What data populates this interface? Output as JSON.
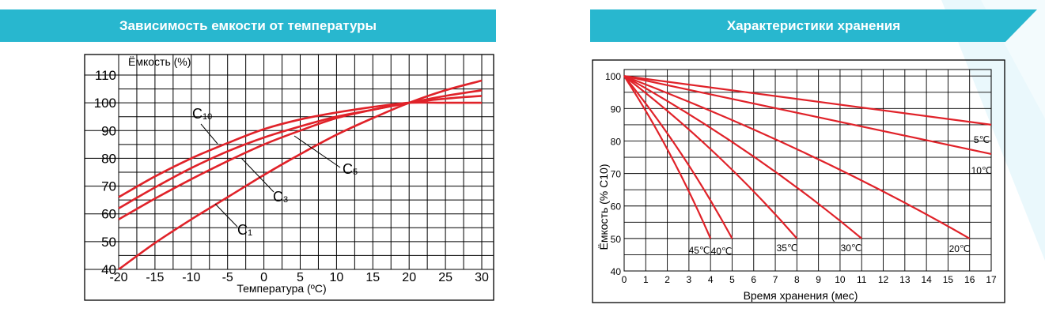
{
  "colors": {
    "header_bg": "#28b7cf",
    "curve": "#e02229",
    "grid": "#000000",
    "decoration": "#e8f7fb"
  },
  "charts": {
    "capacity_vs_temperature": {
      "header": "Зависимость емкости от температуры"
    },
    "storage": {
      "header": "Характеристики хранения"
    }
  },
  "chart_data": [
    {
      "type": "line",
      "title": "Зависимость емкости от температуры",
      "ylabel": "Ёмкость (%)",
      "xlabel": "Температура (ºC)",
      "x_ticks": [
        -20,
        -15,
        -10,
        -5,
        0,
        5,
        10,
        15,
        20,
        25,
        30
      ],
      "y_ticks": [
        40,
        50,
        60,
        70,
        80,
        90,
        100,
        110
      ],
      "xlim": [
        -20,
        30
      ],
      "ylim": [
        40,
        110
      ],
      "grid": true,
      "x": [
        -20,
        -15,
        -10,
        -5,
        0,
        5,
        10,
        15,
        20,
        25,
        30
      ],
      "series": [
        {
          "name": "C10",
          "label_main": "C",
          "label_sub": "10",
          "values": [
            66,
            73.5,
            80,
            85.5,
            90.5,
            94,
            96.5,
            98.5,
            100,
            100,
            100
          ]
        },
        {
          "name": "C5",
          "label_main": "C",
          "label_sub": "5",
          "values": [
            62,
            69.5,
            76.5,
            82.5,
            87.5,
            91.5,
            95,
            97.5,
            100,
            101.5,
            102.5
          ]
        },
        {
          "name": "C3",
          "label_main": "C",
          "label_sub": "3",
          "values": [
            58,
            65.5,
            72.5,
            79,
            85,
            90,
            94.5,
            97.5,
            100,
            102.5,
            104.5
          ]
        },
        {
          "name": "C1",
          "label_main": "C",
          "label_sub": "1",
          "values": [
            40,
            49.5,
            58,
            66,
            74,
            81.5,
            88.5,
            94.5,
            100,
            104.5,
            108
          ]
        }
      ]
    },
    {
      "type": "line",
      "title": "Характеристики хранения",
      "ylabel": "Ёмкость (% C10)",
      "xlabel": "Время хранения (мес)",
      "x_ticks": [
        0,
        1,
        2,
        3,
        4,
        5,
        6,
        7,
        8,
        9,
        10,
        11,
        12,
        13,
        14,
        15,
        16,
        17
      ],
      "y_ticks": [
        40,
        50,
        60,
        70,
        80,
        90,
        100
      ],
      "xlim": [
        0,
        17
      ],
      "ylim": [
        40,
        102
      ],
      "grid": true,
      "series": [
        {
          "name": "5℃",
          "x": [
            0,
            17
          ],
          "values": [
            100,
            85
          ]
        },
        {
          "name": "10℃",
          "x": [
            0,
            17
          ],
          "values": [
            100,
            76
          ]
        },
        {
          "name": "20℃",
          "x": [
            0,
            16
          ],
          "values": [
            100,
            50
          ]
        },
        {
          "name": "30℃",
          "x": [
            0,
            11
          ],
          "values": [
            100,
            50
          ]
        },
        {
          "name": "35℃",
          "x": [
            0,
            8
          ],
          "values": [
            100,
            50
          ]
        },
        {
          "name": "40℃",
          "x": [
            0,
            5
          ],
          "values": [
            100,
            50
          ]
        },
        {
          "name": "45℃",
          "x": [
            0,
            4
          ],
          "values": [
            100,
            50
          ]
        }
      ]
    }
  ]
}
